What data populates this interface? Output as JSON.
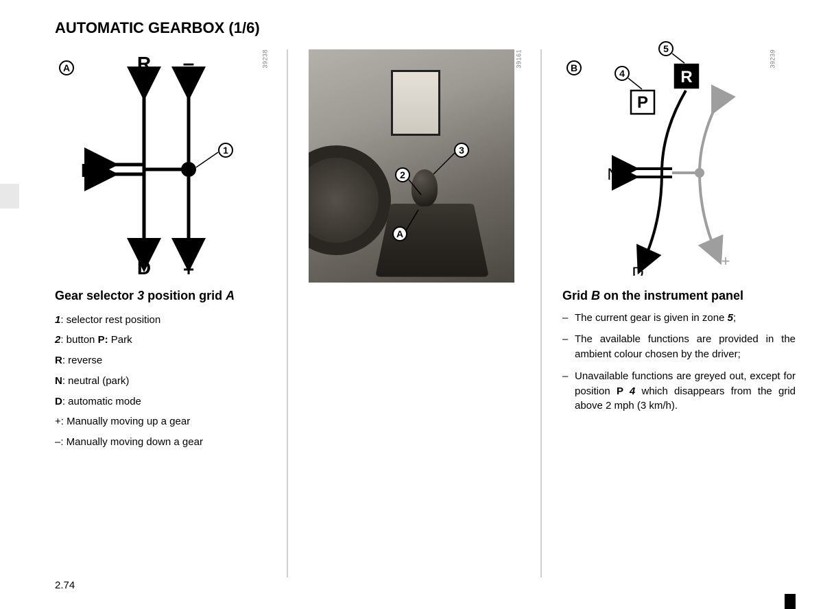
{
  "title_main": "AUTOMATIC GEARBOX",
  "title_paren": "(1/6)",
  "page_number": "2.74",
  "col1": {
    "fig_code": "39238",
    "diagram": {
      "labels": {
        "R": "R",
        "minus": "–",
        "N": "N",
        "D": "D",
        "plus": "+"
      },
      "marker_A": "A",
      "marker_1": "1",
      "line_color": "#000000",
      "dot_color": "#000000"
    },
    "heading_pre": "Gear selector ",
    "heading_em1": "3",
    "heading_mid": " position grid ",
    "heading_em2": "A",
    "items": [
      {
        "k": "1",
        "k_style": "bi",
        "v": ": selector rest position"
      },
      {
        "k": "2",
        "k_style": "bi",
        "v": ": button ",
        "k2": "P:",
        "v2": " Park"
      },
      {
        "k": "R",
        "k_style": "b",
        "v": ": reverse"
      },
      {
        "k": "N",
        "k_style": "b",
        "v": ": neutral (park)"
      },
      {
        "k": "D",
        "k_style": "b",
        "v": ": automatic mode"
      },
      {
        "k": "+",
        "k_style": "",
        "v": ": Manually moving up a gear"
      },
      {
        "k": "–",
        "k_style": "",
        "v": ": Manually moving down a gear"
      }
    ]
  },
  "col2": {
    "fig_code": "39161",
    "callouts": {
      "c3": "3",
      "c2": "2",
      "cA": "A"
    }
  },
  "col3": {
    "fig_code": "39239",
    "diagram": {
      "marker_B": "B",
      "marker_4": "4",
      "marker_5": "5",
      "P": "P",
      "R": "R",
      "N": "N",
      "D": "D",
      "plus": "+",
      "minus": "-",
      "active_color": "#000000",
      "inactive_color": "#9e9e9e",
      "R_box_bg": "#000000",
      "R_box_fg": "#ffffff",
      "center_dot": "#9e9e9e"
    },
    "heading_pre": "Grid ",
    "heading_em1": "B",
    "heading_post": " on the instrument panel",
    "bullets": [
      {
        "pre": "The current gear is given in zone ",
        "em": "5",
        "post": ";"
      },
      {
        "pre": "The available functions are provided in the ambient colour chosen by the driver;",
        "em": "",
        "post": ""
      },
      {
        "pre": "Unavailable functions are greyed out, except for position ",
        "b": "P ",
        "em": "4",
        "post": " which disappears from the grid above 2 mph (3 km/h)."
      }
    ]
  }
}
